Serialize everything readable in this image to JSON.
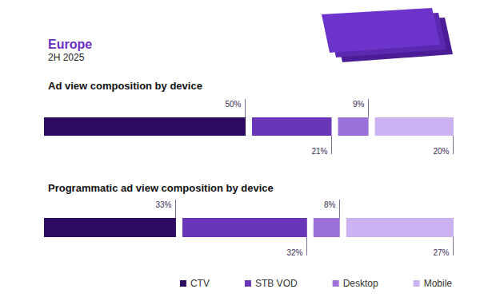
{
  "header": {
    "title": "Europe",
    "subtitle": "2H 2025"
  },
  "chart_data": [
    {
      "type": "bar",
      "title": "Ad view composition by device",
      "orientation": "horizontal",
      "stacked": true,
      "data_labels": true,
      "tick_labels": false,
      "xlim": [
        0,
        100
      ],
      "series": [
        {
          "name": "CTV",
          "color": "#2d0b62",
          "values": [
            50
          ],
          "value_labels": [
            "50%"
          ]
        },
        {
          "name": "STB VOD",
          "color": "#6a36b8",
          "values": [
            21
          ],
          "value_labels": [
            "21%"
          ]
        },
        {
          "name": "Desktop",
          "color": "#9b70d8",
          "values": [
            9
          ],
          "value_labels": [
            "9%"
          ]
        },
        {
          "name": "Mobile",
          "color": "#ccb2f3",
          "values": [
            20
          ],
          "value_labels": [
            "20%"
          ]
        }
      ]
    },
    {
      "type": "bar",
      "title": "Programmatic ad view composition by device",
      "orientation": "horizontal",
      "stacked": true,
      "data_labels": true,
      "tick_labels": false,
      "xlim": [
        0,
        100
      ],
      "legend": "bottom-right",
      "series": [
        {
          "name": "CTV",
          "color": "#2d0b62",
          "values": [
            33
          ],
          "value_labels": [
            "33%"
          ]
        },
        {
          "name": "STB VOD",
          "color": "#6a36b8",
          "values": [
            32
          ],
          "value_labels": [
            "32%"
          ]
        },
        {
          "name": "Desktop",
          "color": "#9b70d8",
          "values": [
            8
          ],
          "value_labels": [
            "8%"
          ]
        },
        {
          "name": "Mobile",
          "color": "#ccb2f3",
          "values": [
            27
          ],
          "value_labels": [
            "27%"
          ]
        }
      ]
    }
  ]
}
